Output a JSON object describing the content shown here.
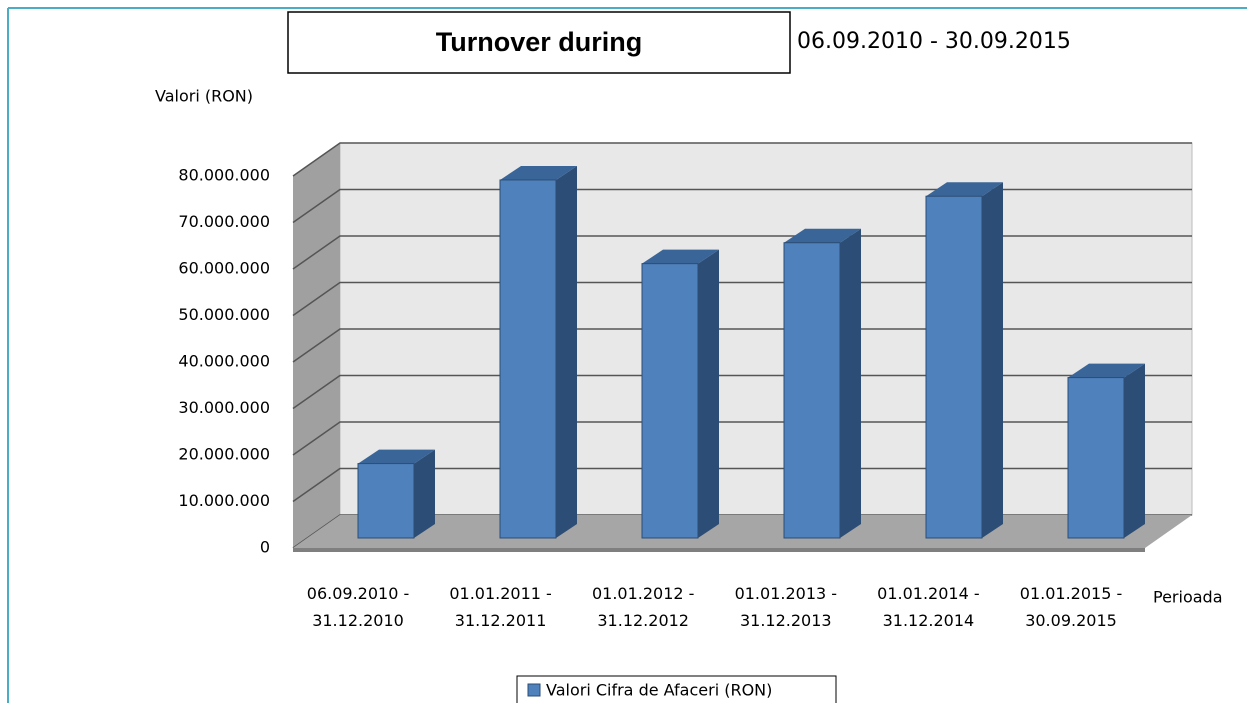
{
  "chart_data": {
    "type": "bar",
    "title": "Turnover during",
    "subtitle": "06.09.2010 - 30.09.2015",
    "y_label": "Valori (RON)",
    "x_label": "Perioada",
    "categories": [
      "06.09.2010 - 31.12.2010",
      "01.01.2011 - 31.12.2011",
      "01.01.2012 - 31.12.2012",
      "01.01.2013 - 31.12.2013",
      "01.01.2014 - 31.12.2014",
      "01.01.2015 - 30.09.2015"
    ],
    "series": [
      {
        "name": "Valori Cifra de Afaceri (RON)",
        "color": "#4f81bd",
        "values": [
          16000000,
          77000000,
          59000000,
          63500000,
          73500000,
          34500000
        ]
      }
    ],
    "ylim": [
      0,
      80000000
    ],
    "yticks": [
      0,
      {
        "value": 10000000,
        "label": "10.000.000"
      },
      {
        "value": 20000000,
        "label": "20.000.000"
      },
      {
        "value": 30000000,
        "label": "30.000.000"
      },
      {
        "value": 40000000,
        "label": "40.000.000"
      },
      {
        "value": 50000000,
        "label": "50.000.000"
      },
      {
        "value": 60000000,
        "label": "60.000.000"
      },
      {
        "value": 70000000,
        "label": "70.000.000"
      },
      {
        "value": 80000000,
        "label": "80.000.000"
      }
    ],
    "grid": true,
    "legend": "bottom"
  }
}
